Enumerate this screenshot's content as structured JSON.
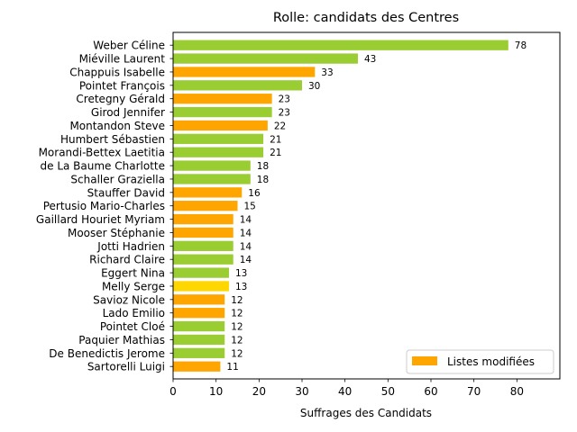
{
  "chart_data": {
    "type": "bar",
    "orientation": "horizontal",
    "title": "Rolle: candidats des Centres",
    "xlabel": "Suffrages des Candidats",
    "ylabel": "",
    "xlim": [
      0,
      90
    ],
    "x_ticks": [
      0,
      10,
      20,
      30,
      40,
      50,
      60,
      70,
      80
    ],
    "grid": false,
    "legend": {
      "placement": "bottom-right",
      "entries": [
        {
          "label": "Listes modifiées",
          "color": "#ffa500"
        }
      ]
    },
    "colors": {
      "green": "#9acd32",
      "orange": "#ffa500",
      "yellow": "#ffd700"
    },
    "bars": [
      {
        "name": "Weber Céline",
        "value": 78,
        "color": "green"
      },
      {
        "name": "Miéville Laurent",
        "value": 43,
        "color": "green"
      },
      {
        "name": "Chappuis Isabelle",
        "value": 33,
        "color": "orange"
      },
      {
        "name": "Pointet François",
        "value": 30,
        "color": "green"
      },
      {
        "name": "Cretegny Gérald",
        "value": 23,
        "color": "orange"
      },
      {
        "name": "Girod Jennifer",
        "value": 23,
        "color": "green"
      },
      {
        "name": "Montandon Steve",
        "value": 22,
        "color": "orange"
      },
      {
        "name": "Humbert Sébastien",
        "value": 21,
        "color": "green"
      },
      {
        "name": "Morandi-Bettex Laetitia",
        "value": 21,
        "color": "green"
      },
      {
        "name": "de La Baume Charlotte",
        "value": 18,
        "color": "green"
      },
      {
        "name": "Schaller Graziella",
        "value": 18,
        "color": "green"
      },
      {
        "name": "Stauffer David",
        "value": 16,
        "color": "orange"
      },
      {
        "name": "Pertusio Mario-Charles",
        "value": 15,
        "color": "orange"
      },
      {
        "name": "Gaillard Houriet Myriam",
        "value": 14,
        "color": "orange"
      },
      {
        "name": "Mooser Stéphanie",
        "value": 14,
        "color": "orange"
      },
      {
        "name": "Jotti Hadrien",
        "value": 14,
        "color": "green"
      },
      {
        "name": "Richard Claire",
        "value": 14,
        "color": "green"
      },
      {
        "name": "Eggert Nina",
        "value": 13,
        "color": "green"
      },
      {
        "name": "Melly Serge",
        "value": 13,
        "color": "yellow"
      },
      {
        "name": "Savioz Nicole",
        "value": 12,
        "color": "orange"
      },
      {
        "name": "Lado Emilio",
        "value": 12,
        "color": "orange"
      },
      {
        "name": "Pointet Cloé",
        "value": 12,
        "color": "green"
      },
      {
        "name": "Paquier Mathias",
        "value": 12,
        "color": "green"
      },
      {
        "name": "De Benedictis Jerome",
        "value": 12,
        "color": "green"
      },
      {
        "name": "Sartorelli Luigi",
        "value": 11,
        "color": "orange"
      }
    ]
  }
}
